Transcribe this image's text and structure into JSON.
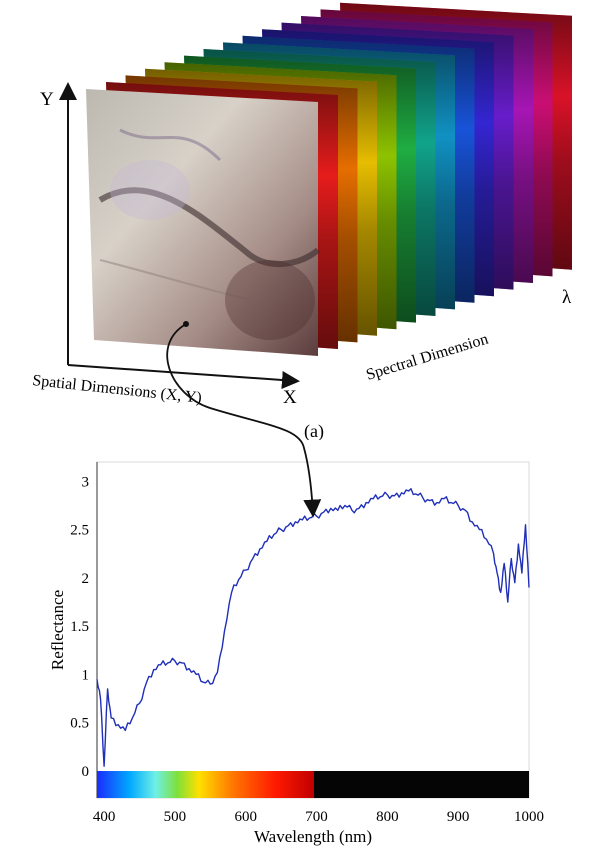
{
  "figure_top": {
    "y_axis_label": "Y",
    "x_axis_label": "X",
    "lambda_label": "λ",
    "spatial_label": "Spatial Dimensions (X, Y)",
    "spectral_label": "Spectral Dimension",
    "panel_label": "(a)",
    "layer_colors": [
      "#ff1f1f",
      "#ff7a00",
      "#ffd200",
      "#9dd800",
      "#23c04a",
      "#13b59a",
      "#12a1d8",
      "#1b5cf0",
      "#3a2ae8",
      "#7220e0",
      "#b818c8",
      "#e01080",
      "#f0142c"
    ]
  },
  "chart_data": {
    "type": "line",
    "title": "",
    "xlabel": "Wavelength (nm)",
    "ylabel": "Reflectance",
    "xlim": [
      390,
      1000
    ],
    "ylim": [
      0,
      3.2
    ],
    "xticks": [
      400,
      500,
      600,
      700,
      800,
      900,
      1000
    ],
    "yticks": [
      0,
      0.5,
      1,
      1.5,
      2,
      2.5,
      3
    ],
    "ytick_labels": [
      "0",
      "0.5",
      "1",
      "1.5",
      "2",
      "2.5",
      "3"
    ],
    "line_color": "#1f2fb8",
    "series": [
      {
        "x": [
          390,
          395,
          400,
          405,
          410,
          420,
          430,
          440,
          450,
          460,
          470,
          480,
          490,
          500,
          510,
          520,
          530,
          540,
          550,
          560,
          570,
          580,
          590,
          600,
          610,
          620,
          630,
          640,
          650,
          660,
          670,
          680,
          690,
          700,
          710,
          720,
          730,
          740,
          750,
          760,
          770,
          780,
          790,
          800,
          810,
          820,
          830,
          840,
          850,
          860,
          870,
          880,
          890,
          900,
          910,
          920,
          930,
          940,
          950,
          955,
          960,
          965,
          970,
          975,
          980,
          985,
          990,
          995,
          1000
        ],
        "values": [
          0.95,
          0.75,
          0.05,
          0.85,
          0.55,
          0.48,
          0.42,
          0.55,
          0.7,
          0.92,
          1.05,
          1.1,
          1.12,
          1.14,
          1.12,
          1.06,
          1.0,
          0.92,
          0.9,
          1.02,
          1.45,
          1.85,
          1.98,
          2.08,
          2.2,
          2.3,
          2.38,
          2.45,
          2.5,
          2.54,
          2.58,
          2.6,
          2.62,
          2.64,
          2.68,
          2.72,
          2.7,
          2.75,
          2.7,
          2.72,
          2.78,
          2.82,
          2.84,
          2.86,
          2.85,
          2.88,
          2.9,
          2.87,
          2.83,
          2.8,
          2.78,
          2.82,
          2.78,
          2.75,
          2.7,
          2.58,
          2.5,
          2.4,
          2.25,
          2.05,
          1.85,
          2.15,
          1.75,
          2.2,
          1.95,
          2.35,
          2.05,
          2.55,
          1.9
        ]
      }
    ],
    "spectrum_bar": true,
    "grid": false,
    "legend": "none"
  }
}
